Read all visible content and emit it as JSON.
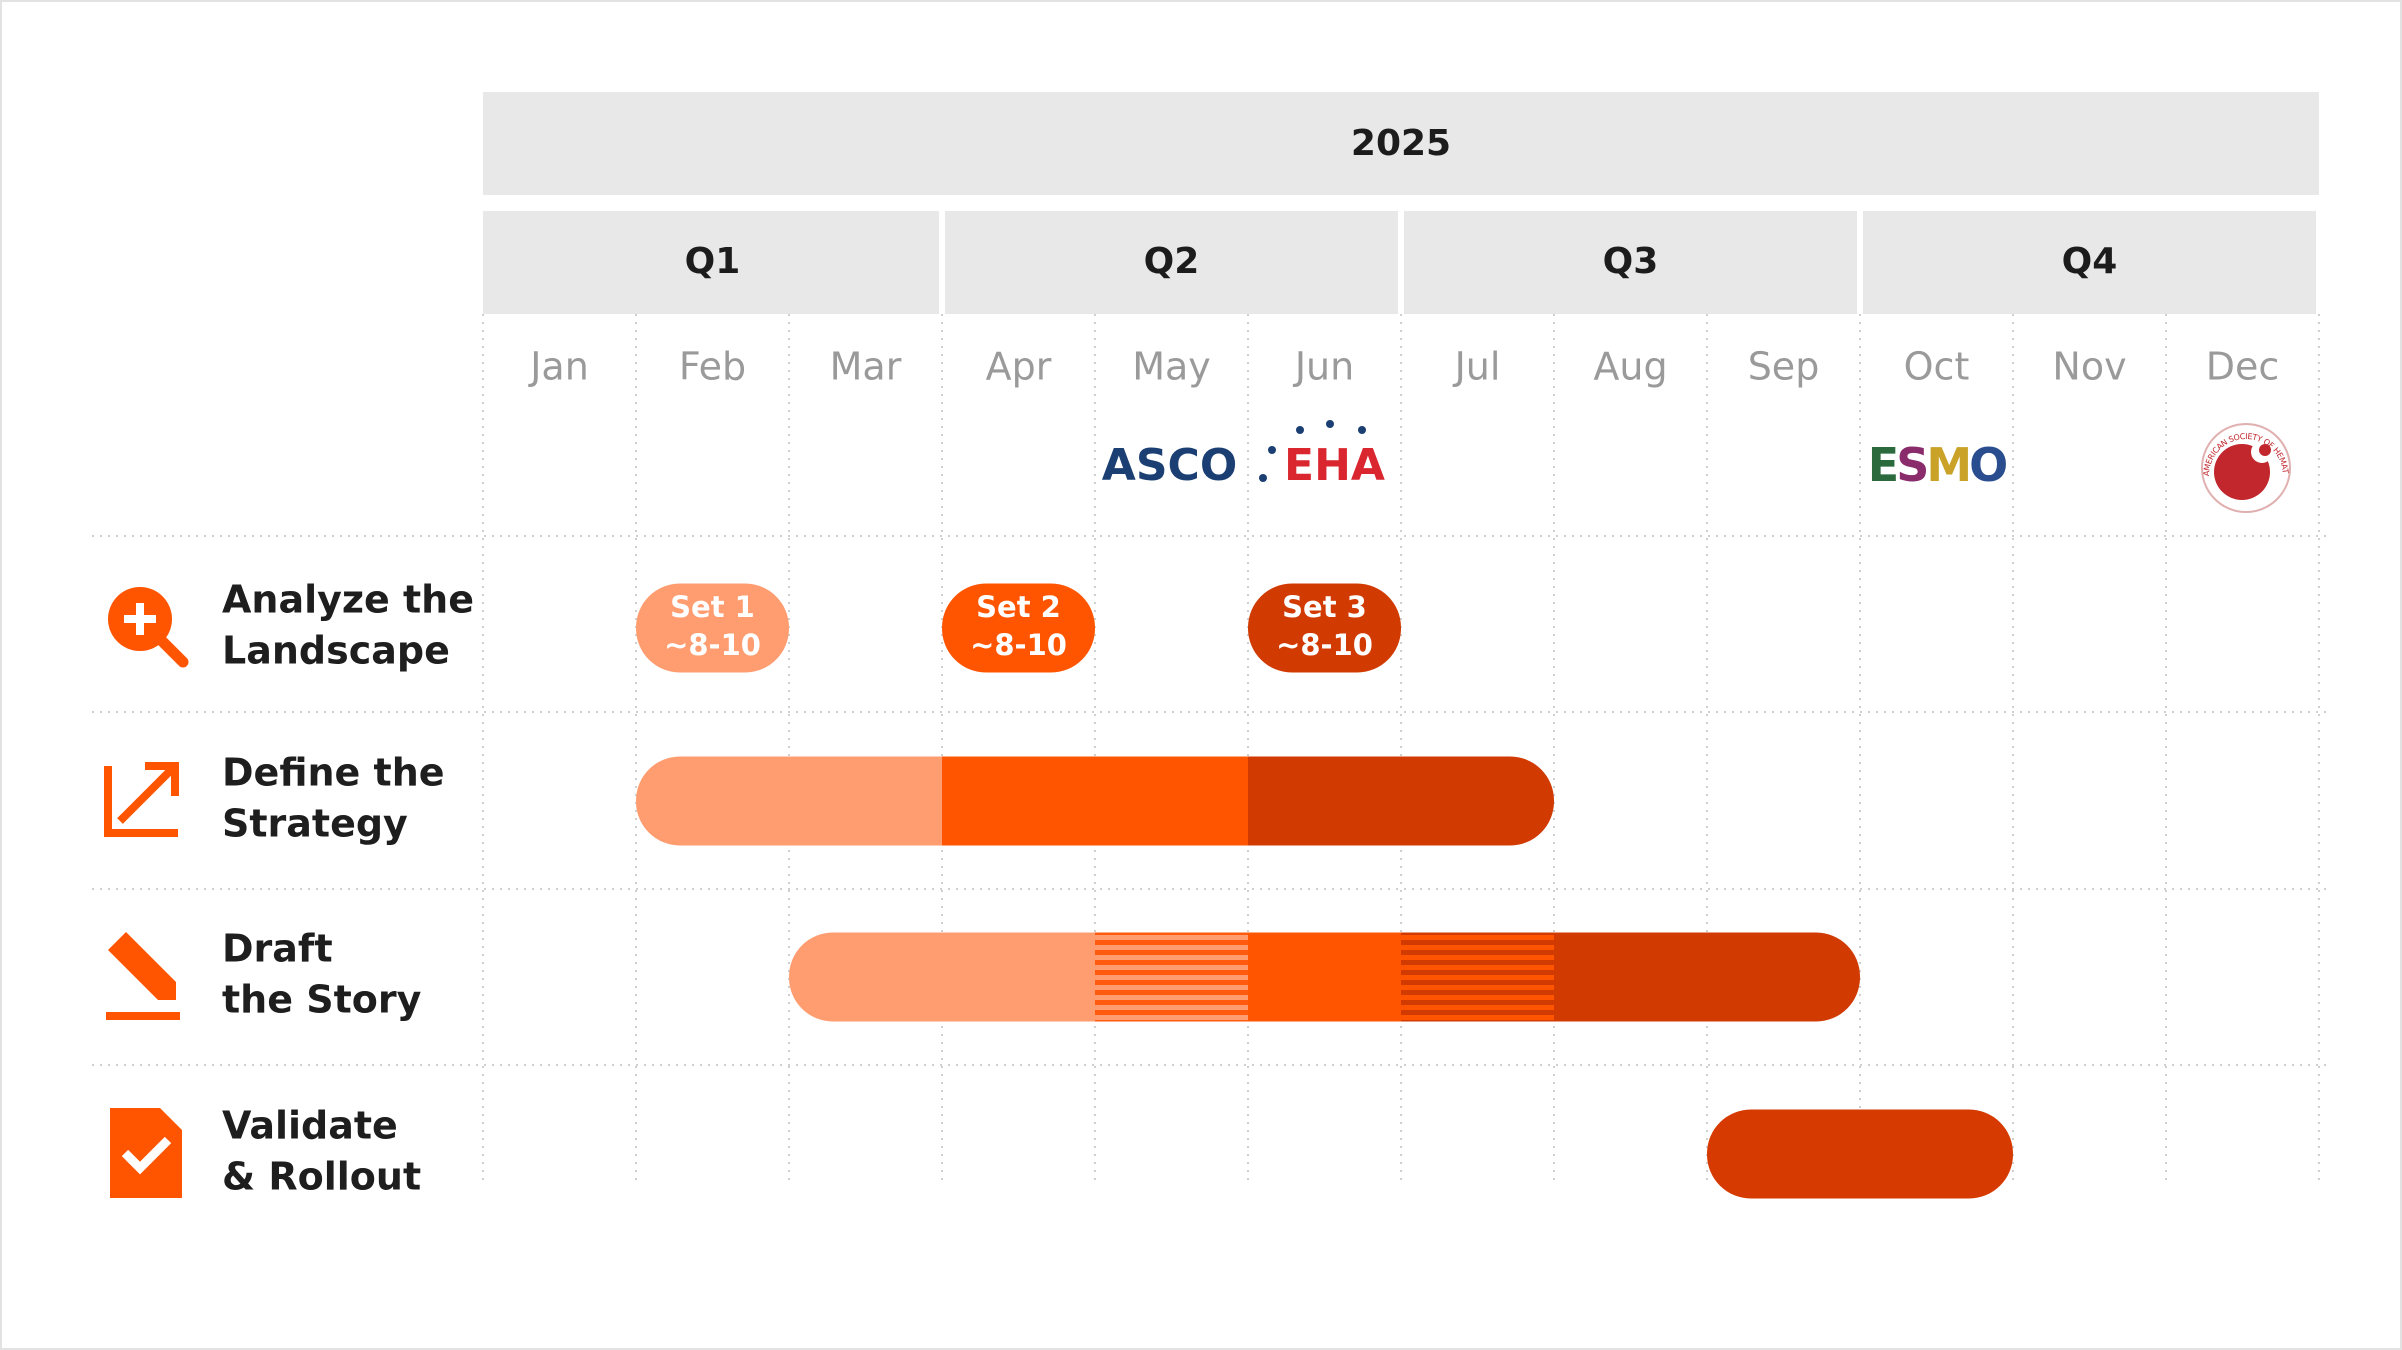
{
  "timeline": {
    "year": "2025",
    "quarters": [
      "Q1",
      "Q2",
      "Q3",
      "Q4"
    ],
    "months": [
      "Jan",
      "Feb",
      "Mar",
      "Apr",
      "May",
      "Jun",
      "Jul",
      "Aug",
      "Sep",
      "Oct",
      "Nov",
      "Dec"
    ],
    "events": {
      "asco": "ASCO",
      "eha": "EHA",
      "esmo": "ESMO",
      "ash": "AMERICAN SOCIETY OF HEMATOLOGY"
    },
    "rows": [
      {
        "label": [
          "Analyze the",
          "Landscape"
        ],
        "sets": [
          {
            "name": "Set 1",
            "count": "~8-10"
          },
          {
            "name": "Set 2",
            "count": "~8-10"
          },
          {
            "name": "Set 3",
            "count": "~8-10"
          }
        ]
      },
      {
        "label": [
          "Define the",
          "Strategy"
        ]
      },
      {
        "label": [
          "Draft",
          "the Story"
        ]
      },
      {
        "label": [
          "Validate",
          "& Rollout"
        ]
      }
    ]
  }
}
